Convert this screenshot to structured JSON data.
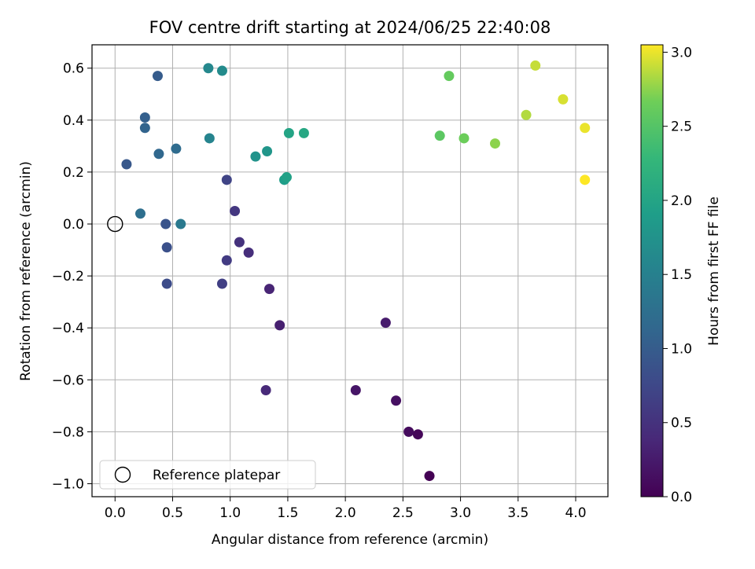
{
  "chart_data": {
    "type": "scatter",
    "title": "FOV centre drift starting at 2024/06/25 22:40:08",
    "xlabel": "Angular distance from reference (arcmin)",
    "ylabel": "Rotation from reference (arcmin)",
    "xlim": [
      -0.2,
      4.28
    ],
    "ylim": [
      -1.05,
      0.69
    ],
    "grid": true,
    "x_ticks": [
      0.0,
      0.5,
      1.0,
      1.5,
      2.0,
      2.5,
      3.0,
      3.5,
      4.0
    ],
    "x_tick_labels": [
      "0.0",
      "0.5",
      "1.0",
      "1.5",
      "2.0",
      "2.5",
      "3.0",
      "3.5",
      "4.0"
    ],
    "y_ticks": [
      0.6,
      0.4,
      0.2,
      0.0,
      -0.2,
      -0.4,
      -0.6,
      -0.8,
      -1.0
    ],
    "y_tick_labels": [
      "0.6",
      "0.4",
      "0.2",
      "0.0",
      "−0.2",
      "−0.4",
      "−0.6",
      "−0.8",
      "−1.0"
    ],
    "colorbar": {
      "label": "Hours from first FF file",
      "colormap": "viridis",
      "range": [
        0.0,
        3.05
      ],
      "ticks": [
        0.0,
        0.5,
        1.0,
        1.5,
        2.0,
        2.5,
        3.0
      ],
      "tick_labels": [
        "0.0",
        "0.5",
        "1.0",
        "1.5",
        "2.0",
        "2.5",
        "3.0"
      ]
    },
    "legend": {
      "placement": "lower-left",
      "entries": [
        {
          "label": "Reference platepar",
          "marker": "open-circle"
        }
      ]
    },
    "reference_point": {
      "x": 0.0,
      "y": 0.0
    },
    "points": [
      {
        "x": 2.73,
        "y": -0.97,
        "hours": 0.0
      },
      {
        "x": 2.63,
        "y": -0.81,
        "hours": 0.05
      },
      {
        "x": 2.55,
        "y": -0.8,
        "hours": 0.1
      },
      {
        "x": 2.44,
        "y": -0.68,
        "hours": 0.15
      },
      {
        "x": 2.09,
        "y": -0.64,
        "hours": 0.2
      },
      {
        "x": 2.35,
        "y": -0.38,
        "hours": 0.25
      },
      {
        "x": 1.43,
        "y": -0.39,
        "hours": 0.3
      },
      {
        "x": 1.34,
        "y": -0.25,
        "hours": 0.35
      },
      {
        "x": 1.31,
        "y": -0.64,
        "hours": 0.4
      },
      {
        "x": 1.16,
        "y": -0.11,
        "hours": 0.45
      },
      {
        "x": 1.08,
        "y": -0.07,
        "hours": 0.5
      },
      {
        "x": 1.04,
        "y": 0.05,
        "hours": 0.55
      },
      {
        "x": 0.97,
        "y": -0.14,
        "hours": 0.6
      },
      {
        "x": 0.93,
        "y": -0.23,
        "hours": 0.65
      },
      {
        "x": 0.97,
        "y": 0.17,
        "hours": 0.7
      },
      {
        "x": 0.45,
        "y": -0.23,
        "hours": 0.8
      },
      {
        "x": 0.45,
        "y": -0.09,
        "hours": 0.85
      },
      {
        "x": 0.44,
        "y": 0.0,
        "hours": 0.9
      },
      {
        "x": 0.1,
        "y": 0.23,
        "hours": 0.95
      },
      {
        "x": 0.37,
        "y": 0.57,
        "hours": 1.0
      },
      {
        "x": 0.26,
        "y": 0.41,
        "hours": 1.05
      },
      {
        "x": 0.26,
        "y": 0.37,
        "hours": 1.1
      },
      {
        "x": 0.38,
        "y": 0.27,
        "hours": 1.15
      },
      {
        "x": 0.53,
        "y": 0.29,
        "hours": 1.2
      },
      {
        "x": 0.22,
        "y": 0.04,
        "hours": 1.25
      },
      {
        "x": 0.57,
        "y": 0.0,
        "hours": 1.4
      },
      {
        "x": 0.82,
        "y": 0.33,
        "hours": 1.55
      },
      {
        "x": 0.81,
        "y": 0.6,
        "hours": 1.6
      },
      {
        "x": 0.93,
        "y": 0.59,
        "hours": 1.65
      },
      {
        "x": 1.22,
        "y": 0.26,
        "hours": 1.75
      },
      {
        "x": 1.32,
        "y": 0.28,
        "hours": 1.8
      },
      {
        "x": 1.47,
        "y": 0.17,
        "hours": 1.9
      },
      {
        "x": 1.49,
        "y": 0.18,
        "hours": 1.95
      },
      {
        "x": 1.51,
        "y": 0.35,
        "hours": 2.0
      },
      {
        "x": 1.64,
        "y": 0.35,
        "hours": 2.05
      },
      {
        "x": 2.82,
        "y": 0.34,
        "hours": 2.55
      },
      {
        "x": 2.9,
        "y": 0.57,
        "hours": 2.6
      },
      {
        "x": 3.03,
        "y": 0.33,
        "hours": 2.65
      },
      {
        "x": 3.3,
        "y": 0.31,
        "hours": 2.75
      },
      {
        "x": 3.57,
        "y": 0.42,
        "hours": 2.85
      },
      {
        "x": 3.65,
        "y": 0.61,
        "hours": 2.9
      },
      {
        "x": 3.89,
        "y": 0.48,
        "hours": 2.95
      },
      {
        "x": 4.08,
        "y": 0.37,
        "hours": 3.0
      },
      {
        "x": 4.08,
        "y": 0.17,
        "hours": 3.05
      }
    ]
  }
}
